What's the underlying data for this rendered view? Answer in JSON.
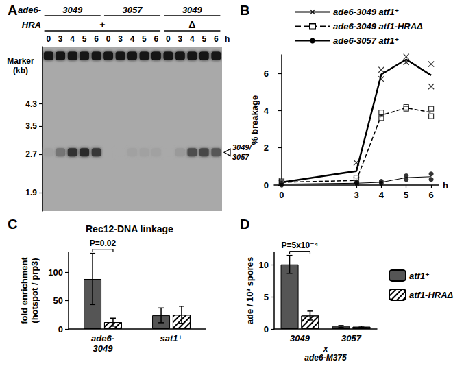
{
  "chart_data": [
    {
      "type": "blot",
      "panel": "A",
      "row_titles": [
        "ade6-",
        "HRA"
      ],
      "groups": [
        {
          "allele": "3049",
          "hra": "+",
          "hours": [
            0,
            3,
            4,
            5,
            6
          ]
        },
        {
          "allele": "3057",
          "hra": "+",
          "hours": [
            0,
            3,
            4,
            5,
            6
          ]
        },
        {
          "allele": "3049",
          "hra": "Δ",
          "hours": [
            0,
            3,
            4,
            5,
            6
          ]
        }
      ],
      "xlabel": "h",
      "ylabel": "Marker\n(kb)",
      "log": "y",
      "ylim": [
        1.6,
        7.3
      ],
      "yticks": [
        1.9,
        2.7,
        3.5,
        4.3
      ],
      "bands": [
        {
          "kb": 6.7,
          "intensity": [
            1,
            1,
            1,
            1,
            1,
            1,
            1,
            1,
            1,
            1,
            1,
            1,
            1,
            1,
            1
          ]
        },
        {
          "kb": 2.75,
          "label": "3049/\n3057",
          "intensity": [
            0.05,
            0.35,
            0.8,
            0.85,
            0.75,
            0,
            0,
            0.05,
            0.05,
            0.05,
            0,
            0.1,
            0.6,
            0.65,
            0.55
          ]
        }
      ]
    },
    {
      "type": "line",
      "panel": "B",
      "x": [
        0,
        3,
        4,
        5,
        6
      ],
      "xlabel": "h",
      "ylabel": "% breakage",
      "xlim": [
        -0.3,
        6.3
      ],
      "xticks": [
        0,
        3,
        4,
        5,
        6
      ],
      "ylim": [
        0,
        7
      ],
      "yticks": [
        0,
        2,
        4,
        6
      ],
      "legend": "top",
      "series": [
        {
          "name": "ade6-3049 atf1⁺",
          "color": "#000000",
          "marker": "x",
          "line_style": "solid",
          "values": [
            0.15,
            0.75,
            5.95,
            6.75,
            5.9
          ],
          "points": [
            [
              0.1,
              0.2
            ],
            [
              1.2,
              0.3
            ],
            [
              6.2,
              5.7
            ],
            [
              6.9,
              6.6
            ],
            [
              6.5,
              5.3
            ]
          ]
        },
        {
          "name": "ade6-3049 atf1-HRAΔ",
          "color": "#000000",
          "marker": "square",
          "line_style": "dashed",
          "values": [
            0.15,
            0.25,
            3.75,
            4.15,
            3.9
          ],
          "points": [
            [
              0.2,
              0.1
            ],
            [
              0.4,
              0.1
            ],
            [
              3.9,
              3.6
            ],
            [
              4.2,
              4.1
            ],
            [
              4.1,
              3.7
            ]
          ]
        },
        {
          "name": "ade6-3057 atf1⁺",
          "color": "#000000",
          "marker": "circle",
          "line_style": "solid",
          "values": [
            0.05,
            0.1,
            0.15,
            0.4,
            0.45
          ],
          "points": [
            [
              0.1,
              0.0
            ],
            [
              0.1,
              0.1
            ],
            [
              0.1,
              0.2
            ],
            [
              0.5,
              0.3
            ],
            [
              0.6,
              0.3
            ]
          ]
        }
      ]
    },
    {
      "type": "bar",
      "panel": "C",
      "title": "Rec12-DNA linkage",
      "categories": [
        "ade6-\n3049",
        "sat1⁺"
      ],
      "ylabel": "fold enrichment\n(hotspot / prp3)",
      "ylim": [
        0,
        135
      ],
      "yticks": [
        0,
        50,
        100
      ],
      "series": [
        {
          "name": "atf1⁺",
          "color": "#555555",
          "values": [
            88,
            24
          ],
          "errors": [
            45,
            13
          ]
        },
        {
          "name": "atf1-HRAΔ",
          "color": "#ffffff",
          "values": [
            12,
            25
          ],
          "errors": [
            7,
            15
          ]
        }
      ],
      "annotations": [
        {
          "text": "P=0.02",
          "category": "ade6-\n3049"
        }
      ]
    },
    {
      "type": "bar",
      "panel": "D",
      "categories": [
        "3049",
        "3057"
      ],
      "xlabel": "x\nade6-M375",
      "ylabel": "ade / 10³ spores",
      "ylim": [
        0,
        12
      ],
      "yticks": [
        0,
        5,
        10
      ],
      "legend": "right",
      "series": [
        {
          "name": "atf1⁺",
          "color": "#555555",
          "values": [
            10.1,
            0.4
          ],
          "errors": [
            1.4,
            0.15
          ]
        },
        {
          "name": "atf1-HRAΔ",
          "color": "#ffffff",
          "values": [
            2.1,
            0.35
          ],
          "errors": [
            0.7,
            0.1
          ]
        }
      ],
      "annotations": [
        {
          "text": "P=5x10⁻⁴",
          "category": "3049"
        }
      ]
    }
  ]
}
